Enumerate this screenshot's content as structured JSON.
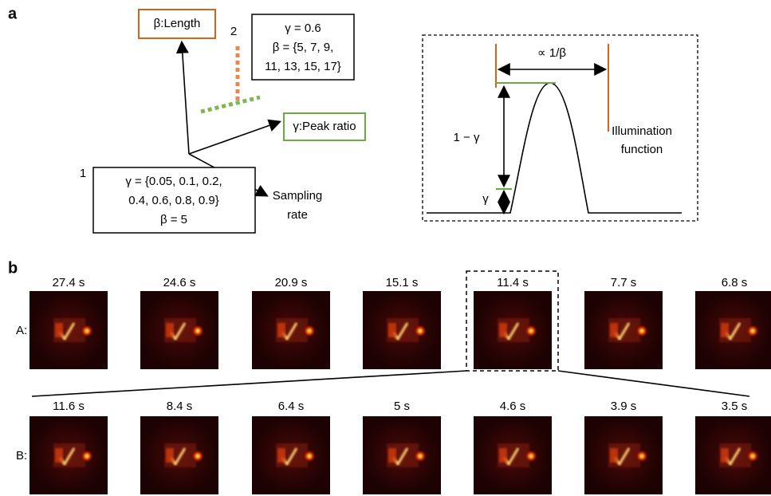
{
  "panel_a": {
    "label": "a",
    "length_box": "β:Length",
    "marker_2": "2",
    "box_2": [
      "γ = 0.6",
      "β = {5, 7, 9,",
      "11, 13, 15, 17}"
    ],
    "peak_box": "γ:Peak ratio",
    "marker_1": "1",
    "box_1": [
      "γ = {0.05, 0.1, 0.2,",
      "0.4, 0.6, 0.8, 0.9}",
      "β = 5"
    ],
    "sampling": [
      "Sampling",
      "rate"
    ],
    "illumination": {
      "width_label": "∝ 1/β",
      "height_label": "1 − γ",
      "base_label": "γ",
      "caption": [
        "Illumination",
        "function"
      ]
    }
  },
  "panel_b": {
    "label": "b",
    "rows": [
      {
        "label": "A:",
        "times": [
          "27.4 s",
          "24.6 s",
          "20.9 s",
          "15.1 s",
          "11.4 s",
          "7.7 s",
          "6.8 s"
        ]
      },
      {
        "label": "B:",
        "times": [
          "11.6 s",
          "8.4 s",
          "6.4 s",
          "5 s",
          "4.6 s",
          "3.9 s",
          "3.5 s"
        ]
      }
    ]
  }
}
